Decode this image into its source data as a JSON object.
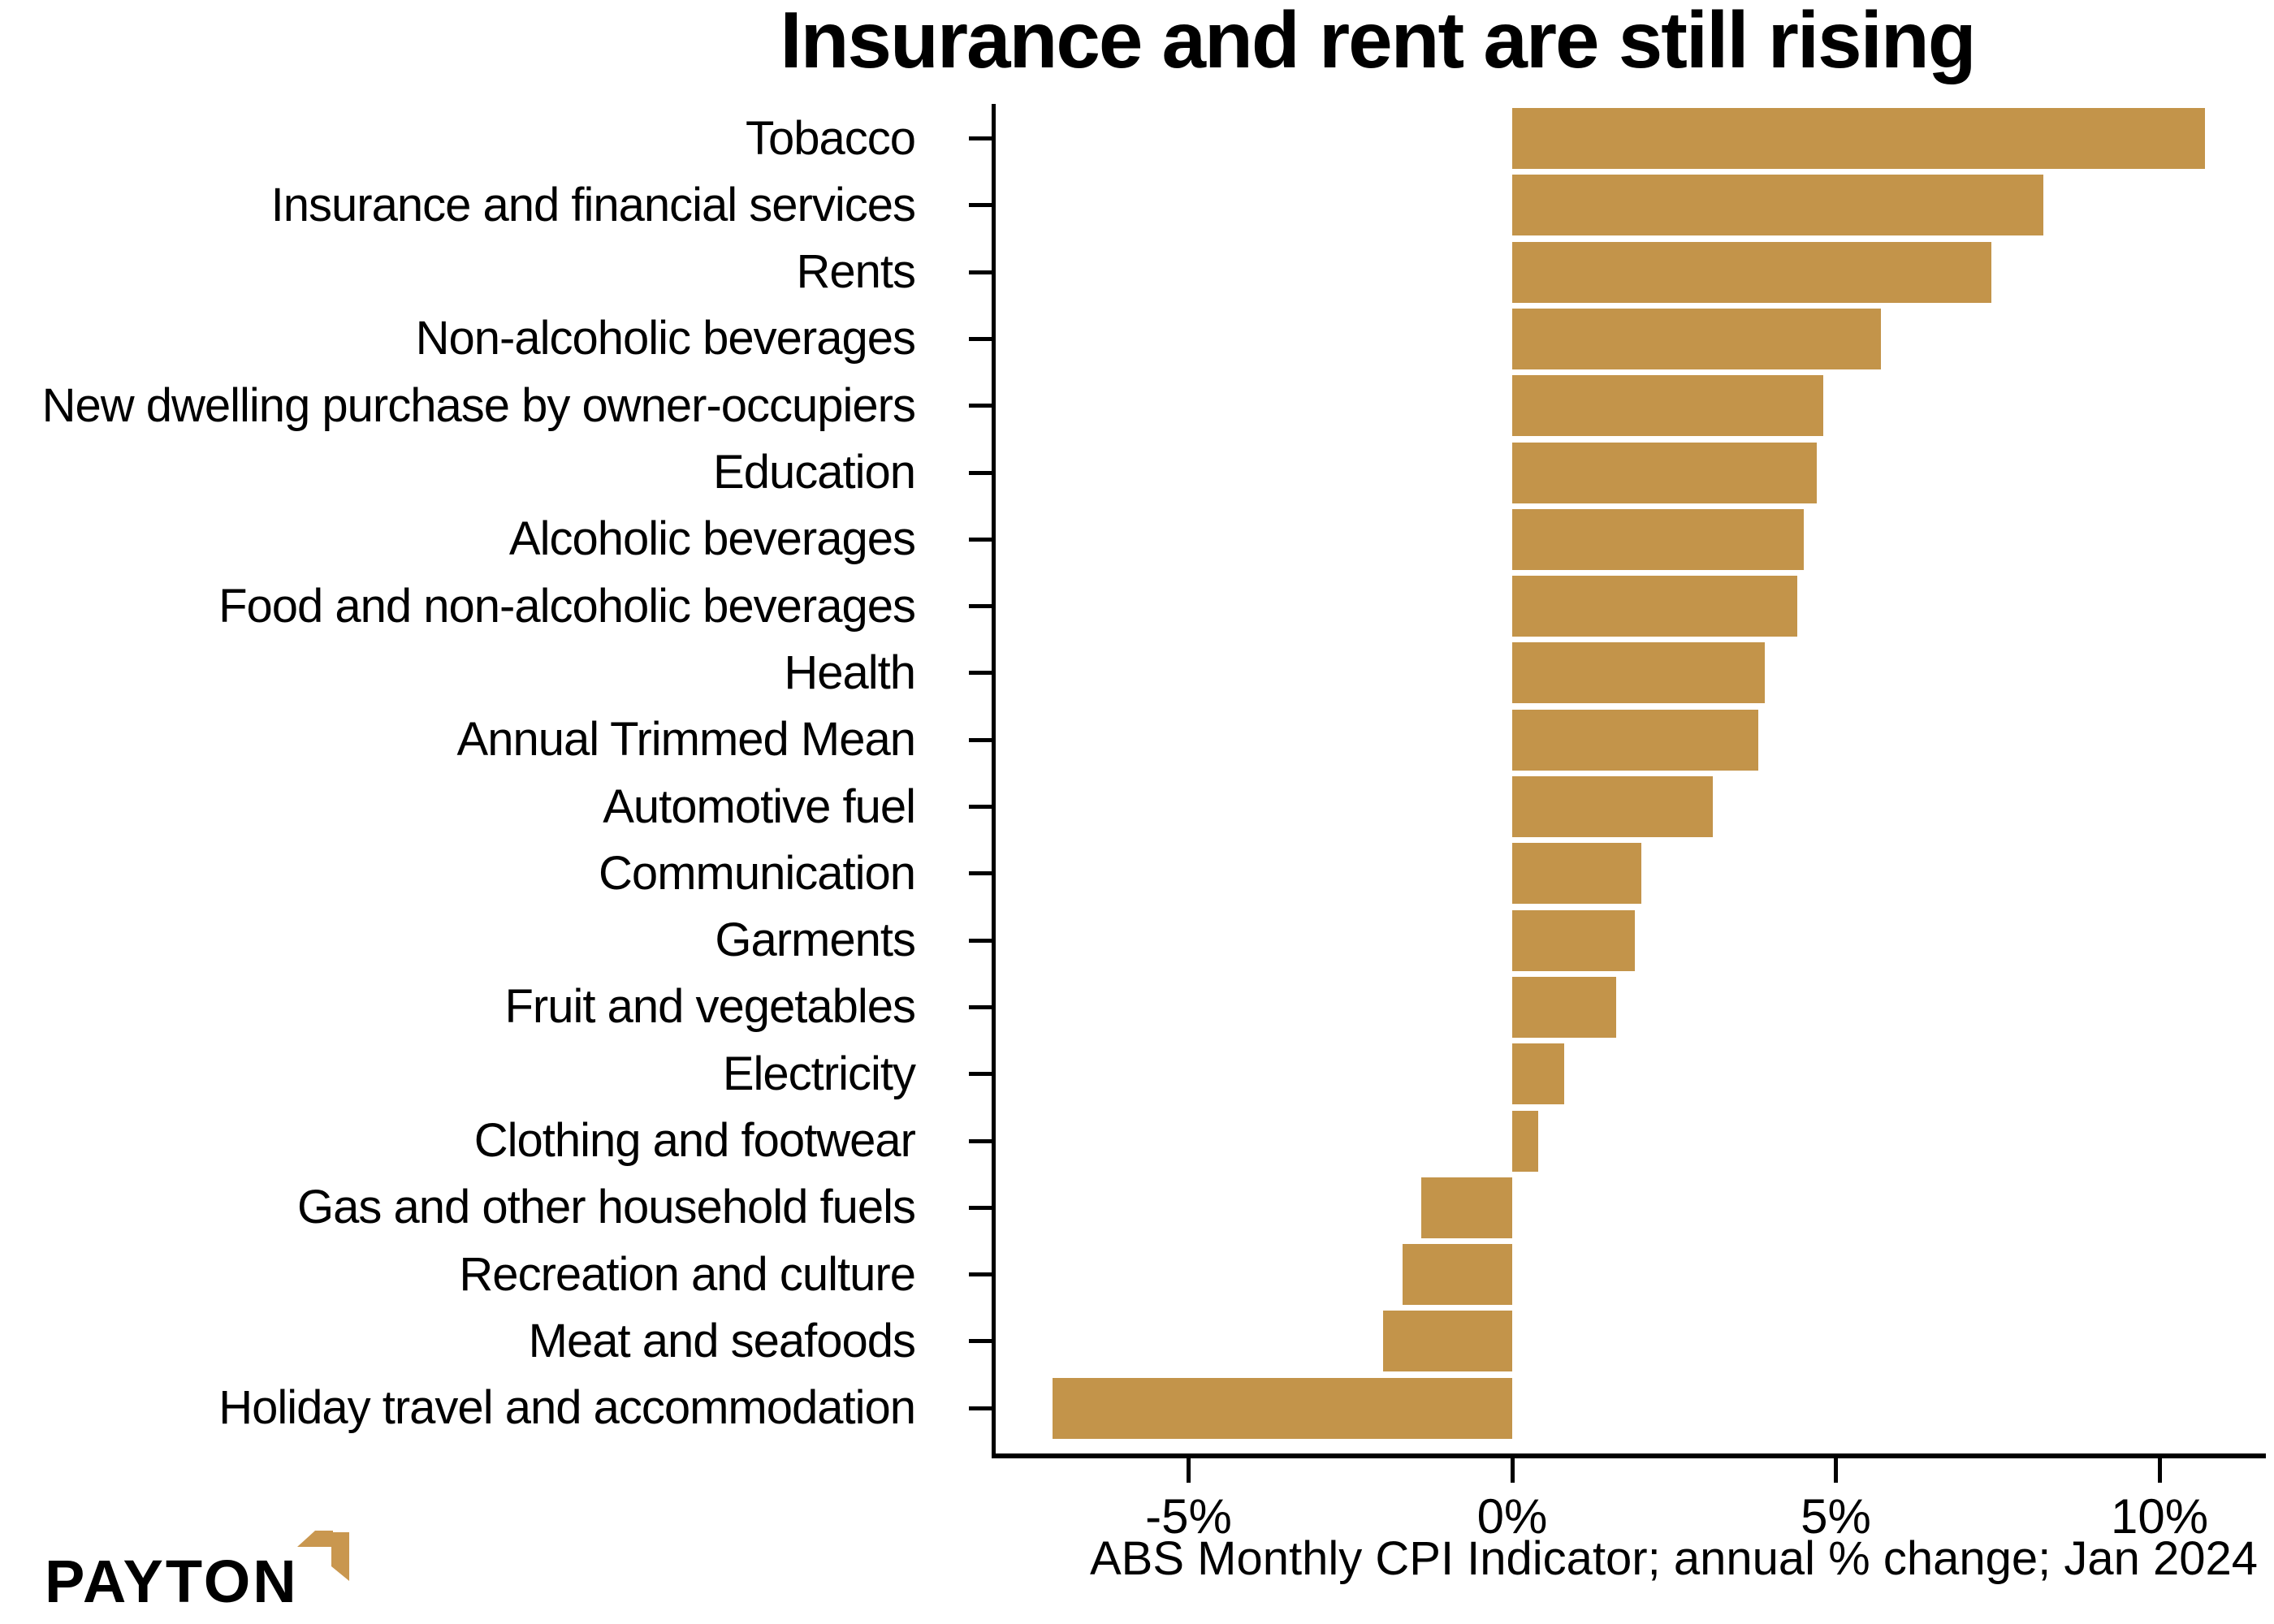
{
  "title": "Insurance and rent are still rising",
  "chart_data": {
    "type": "bar",
    "orientation": "horizontal",
    "title": "Insurance and rent are still rising",
    "xlabel": "ABS Monthly CPI Indicator; annual % change; Jan 2024",
    "ylabel": "",
    "xlim": [
      -8.05,
      11.65
    ],
    "grid": false,
    "legend": null,
    "bar_color": "#C3944A",
    "categories": [
      "Tobacco",
      "Insurance and financial services",
      "Rents",
      "Non-alcoholic beverages",
      "New dwelling purchase by owner-occupiers",
      "Education",
      "Alcoholic beverages",
      "Food and non-alcoholic beverages",
      "Health",
      "Annual Trimmed Mean",
      "Automotive fuel",
      "Communication",
      "Garments",
      "Fruit and vegetables",
      "Electricity",
      "Clothing and footwear",
      "Gas and other household fuels",
      "Recreation and culture",
      "Meat and seafoods",
      "Holiday travel and accommodation"
    ],
    "values": [
      10.7,
      8.2,
      7.4,
      5.7,
      4.8,
      4.7,
      4.5,
      4.4,
      3.9,
      3.8,
      3.1,
      2.0,
      1.9,
      1.6,
      0.8,
      0.4,
      -1.4,
      -1.7,
      -2.0,
      -7.1
    ],
    "x_ticks": [
      {
        "value": -5,
        "label": "-5%"
      },
      {
        "value": 0,
        "label": "0%"
      },
      {
        "value": 5,
        "label": "5%"
      },
      {
        "value": 10,
        "label": "10%"
      }
    ]
  },
  "branding": {
    "logo_text": "PAYTON",
    "logo_accent_color": "#C9974F",
    "logo_text_color": "#000000"
  }
}
